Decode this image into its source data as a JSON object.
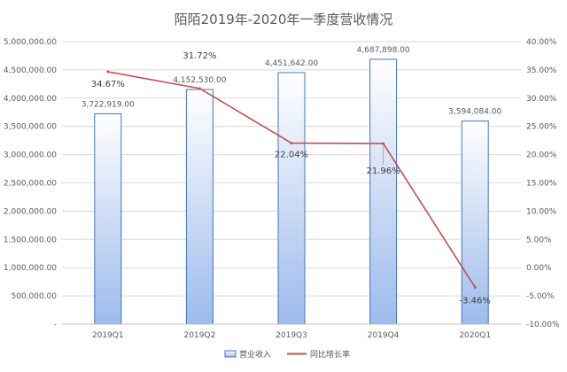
{
  "chart_data": {
    "type": "bar",
    "title": "陌陌2019年-2020年一季度营收情况",
    "categories": [
      "2019Q1",
      "2019Q2",
      "2019Q3",
      "2019Q4",
      "2020Q1"
    ],
    "series": [
      {
        "name": "营业收入",
        "type": "bar",
        "axis": "left",
        "values": [
          3722919.0,
          4152530.0,
          4451642.0,
          4687898.0,
          3594084.0
        ],
        "labels": [
          "3,722,919.00",
          "4,152,530.00",
          "4,451,642.00",
          "4,687,898.00",
          "3,594,084.00"
        ],
        "color": "#4472C4"
      },
      {
        "name": "同比增长率",
        "type": "line",
        "axis": "right",
        "values": [
          34.67,
          31.72,
          22.04,
          21.96,
          -3.46
        ],
        "labels": [
          "34.67%",
          "31.72%",
          "22.04%",
          "21.96%",
          "-3.46%"
        ],
        "color": "#C0504D"
      }
    ],
    "y_left": {
      "min": 0,
      "max": 5000000,
      "ticks": [
        {
          "value": 0,
          "label": "-"
        },
        {
          "value": 500000,
          "label": "500,000.00"
        },
        {
          "value": 1000000,
          "label": "1,000,000.00"
        },
        {
          "value": 1500000,
          "label": "1,500,000.00"
        },
        {
          "value": 2000000,
          "label": "2,000,000.00"
        },
        {
          "value": 2500000,
          "label": "2,500,000.00"
        },
        {
          "value": 3000000,
          "label": "3,000,000.00"
        },
        {
          "value": 3500000,
          "label": "3,500,000.00"
        },
        {
          "value": 4000000,
          "label": "4,000,000.00"
        },
        {
          "value": 4500000,
          "label": "4,500,000.00"
        },
        {
          "value": 5000000,
          "label": "5,000,000.00"
        }
      ]
    },
    "y_right": {
      "min": -10,
      "max": 40,
      "ticks": [
        {
          "value": -10,
          "label": "-10.00%"
        },
        {
          "value": -5,
          "label": "-5.00%"
        },
        {
          "value": 0,
          "label": "0.00%"
        },
        {
          "value": 5,
          "label": "5.00%"
        },
        {
          "value": 10,
          "label": "10.00%"
        },
        {
          "value": 15,
          "label": "15.00%"
        },
        {
          "value": 20,
          "label": "20.00%"
        },
        {
          "value": 25,
          "label": "25.00%"
        },
        {
          "value": 30,
          "label": "30.00%"
        },
        {
          "value": 35,
          "label": "35.00%"
        },
        {
          "value": 40,
          "label": "40.00%"
        }
      ]
    },
    "grid": true,
    "legend": "bottom"
  }
}
